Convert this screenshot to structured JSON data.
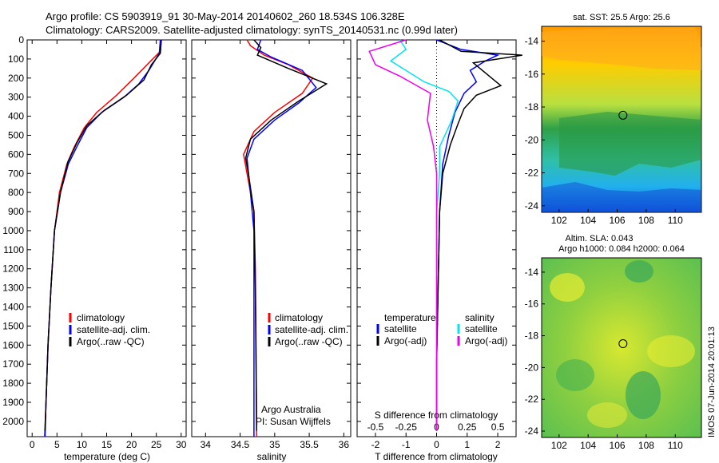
{
  "title": {
    "line1": "Argo profile: CS 5903919_91 30-May-2014 20140602_260 18.534S 106.328E",
    "line2": "Climatology: CARS2009. Satellite-adjusted climatology: synTS_20140531.nc (0.99d later)"
  },
  "credits": {
    "org": "Argo Australia",
    "pi": "PI: Susan Wijffels"
  },
  "stamp": "IMOS 07-Jun-2014 20:01:13",
  "colors": {
    "climatology": "#ff0000",
    "satellite": "#0000ff",
    "argo": "#000000",
    "sat_salinity": "#00e5ee",
    "argo_salinity": "#ee00ee"
  },
  "chart_data": [
    {
      "type": "line",
      "name": "temperature-profile",
      "xlabel": "temperature (deg C)",
      "ylabel": "",
      "xlim": [
        -1,
        31
      ],
      "ylim": [
        2080,
        0
      ],
      "xticks": [
        0,
        5,
        10,
        15,
        20,
        25,
        30
      ],
      "yticks": [
        0,
        100,
        200,
        300,
        400,
        500,
        600,
        700,
        800,
        900,
        1000,
        1100,
        1200,
        1300,
        1400,
        1500,
        1600,
        1700,
        1800,
        1900,
        2000
      ],
      "legend": [
        "climatology",
        "satellite-adj. clim.",
        "Argo(..raw -QC)"
      ],
      "series": [
        {
          "name": "climatology",
          "color": "#ff0000",
          "points": [
            [
              26,
              0
            ],
            [
              25.8,
              60
            ],
            [
              23.5,
              120
            ],
            [
              20.5,
              200
            ],
            [
              17,
              290
            ],
            [
              13,
              380
            ],
            [
              10.5,
              460
            ],
            [
              8.5,
              560
            ],
            [
              7,
              650
            ],
            [
              5.5,
              800
            ],
            [
              4.5,
              1000
            ],
            [
              3.8,
              1300
            ],
            [
              3.2,
              1600
            ],
            [
              2.8,
              1900
            ],
            [
              2.5,
              2080
            ]
          ]
        },
        {
          "name": "satellite",
          "color": "#0000ff",
          "points": [
            [
              25.8,
              0
            ],
            [
              25.6,
              70
            ],
            [
              23.5,
              160
            ],
            [
              21.5,
              230
            ],
            [
              18.5,
              300
            ],
            [
              14,
              380
            ],
            [
              11,
              460
            ],
            [
              9,
              560
            ],
            [
              7.3,
              650
            ],
            [
              5.7,
              800
            ],
            [
              4.5,
              1000
            ],
            [
              3.8,
              1300
            ],
            [
              3.2,
              1600
            ],
            [
              2.8,
              1900
            ],
            [
              2.6,
              2080
            ]
          ]
        },
        {
          "name": "argo",
          "color": "#000000",
          "points": [
            [
              26,
              0
            ],
            [
              25.8,
              70
            ],
            [
              24,
              130
            ],
            [
              22.5,
              210
            ],
            [
              19,
              290
            ],
            [
              14.5,
              370
            ],
            [
              11,
              450
            ],
            [
              9,
              540
            ],
            [
              7.2,
              640
            ],
            [
              5.7,
              800
            ],
            [
              4.5,
              1000
            ],
            [
              3.8,
              1300
            ],
            [
              3.2,
              1600
            ],
            [
              2.8,
              1900
            ],
            [
              2.6,
              2050
            ]
          ]
        }
      ]
    },
    {
      "type": "line",
      "name": "salinity-profile",
      "xlabel": "salinity",
      "xlim": [
        33.8,
        36.1
      ],
      "ylim": [
        2080,
        0
      ],
      "xticks": [
        34,
        34.5,
        35,
        35.5,
        36
      ],
      "legend": [
        "climatology",
        "satellite-adj. clim.",
        "Argo(..raw -QC)"
      ],
      "series": [
        {
          "name": "climatology",
          "color": "#ff0000",
          "points": [
            [
              34.6,
              0
            ],
            [
              34.65,
              30
            ],
            [
              34.85,
              80
            ],
            [
              35.2,
              130
            ],
            [
              35.55,
              200
            ],
            [
              35.4,
              280
            ],
            [
              35,
              380
            ],
            [
              34.7,
              480
            ],
            [
              34.55,
              600
            ],
            [
              34.6,
              700
            ],
            [
              34.7,
              900
            ],
            [
              34.72,
              1200
            ],
            [
              34.73,
              1600
            ],
            [
              34.74,
              2080
            ]
          ]
        },
        {
          "name": "satellite",
          "color": "#0000ff",
          "points": [
            [
              34.8,
              0
            ],
            [
              34.75,
              50
            ],
            [
              34.95,
              90
            ],
            [
              35.4,
              160
            ],
            [
              35.6,
              250
            ],
            [
              35.35,
              330
            ],
            [
              35,
              420
            ],
            [
              34.7,
              520
            ],
            [
              34.6,
              620
            ],
            [
              34.65,
              800
            ],
            [
              34.7,
              1000
            ],
            [
              34.7,
              1400
            ],
            [
              34.7,
              1800
            ],
            [
              34.7,
              2080
            ]
          ]
        },
        {
          "name": "argo",
          "color": "#000000",
          "points": [
            [
              34.7,
              0
            ],
            [
              34.8,
              40
            ],
            [
              34.75,
              80
            ],
            [
              35.2,
              150
            ],
            [
              35.75,
              230
            ],
            [
              35.35,
              320
            ],
            [
              34.95,
              420
            ],
            [
              34.65,
              520
            ],
            [
              34.58,
              620
            ],
            [
              34.62,
              700
            ],
            [
              34.7,
              900
            ],
            [
              34.72,
              1300
            ],
            [
              34.73,
              1700
            ],
            [
              34.74,
              2050
            ]
          ]
        }
      ]
    },
    {
      "type": "line",
      "name": "difference-profile",
      "xlabel": "T difference from climatology",
      "xlabel_top": "S difference from climatology",
      "xlim": [
        -2.6,
        2.6
      ],
      "ylim": [
        2080,
        0
      ],
      "xticks": [
        -2,
        -1,
        0,
        1,
        2
      ],
      "xticklabels_top": [
        "-0.5",
        "-0.25",
        "0",
        "0.25",
        "0.5"
      ],
      "legend_headers": [
        "temperature",
        "salinity"
      ],
      "legend": [
        "satellite",
        "Argo(-adj)",
        "satellite",
        "Argo(-adj)"
      ],
      "series": [
        {
          "name": "T satellite",
          "color": "#0000ff",
          "points": [
            [
              0,
              0
            ],
            [
              0.8,
              50
            ],
            [
              2,
              80
            ],
            [
              1.6,
              110
            ],
            [
              1.1,
              160
            ],
            [
              1.3,
              220
            ],
            [
              0.9,
              280
            ],
            [
              0.6,
              380
            ],
            [
              0.4,
              500
            ],
            [
              0.2,
              650
            ],
            [
              0.1,
              900
            ],
            [
              0.05,
              1300
            ],
            [
              0,
              1700
            ],
            [
              0,
              2050
            ]
          ]
        },
        {
          "name": "T argo",
          "color": "#000000",
          "points": [
            [
              0.1,
              0
            ],
            [
              0.8,
              60
            ],
            [
              2.8,
              80
            ],
            [
              1.2,
              120
            ],
            [
              1.8,
              200
            ],
            [
              2.1,
              240
            ],
            [
              1.3,
              290
            ],
            [
              0.9,
              360
            ],
            [
              0.7,
              440
            ],
            [
              0.45,
              550
            ],
            [
              0.2,
              700
            ],
            [
              0.1,
              900
            ],
            [
              0.05,
              1300
            ],
            [
              0,
              1700
            ],
            [
              0,
              2050
            ]
          ]
        },
        {
          "name": "S satellite",
          "color": "#00e5ee",
          "points": [
            [
              -1.2,
              0
            ],
            [
              -1,
              50
            ],
            [
              -1.5,
              110
            ],
            [
              -0.4,
              220
            ],
            [
              0.4,
              270
            ],
            [
              0.7,
              320
            ],
            [
              0.5,
              420
            ],
            [
              0.1,
              560
            ],
            [
              0.1,
              700
            ],
            [
              0,
              900
            ],
            [
              0,
              1300
            ],
            [
              0,
              1700
            ],
            [
              0,
              2050
            ]
          ]
        },
        {
          "name": "S argo",
          "color": "#ee00ee",
          "points": [
            [
              -1,
              0
            ],
            [
              -2.2,
              60
            ],
            [
              -2,
              130
            ],
            [
              -1.2,
              190
            ],
            [
              -0.2,
              280
            ],
            [
              -0.3,
              420
            ],
            [
              -0.1,
              560
            ],
            [
              0,
              700
            ],
            [
              0,
              900
            ],
            [
              0,
              1300
            ],
            [
              0,
              1700
            ],
            [
              0,
              2050
            ]
          ]
        }
      ]
    },
    {
      "type": "heatmap",
      "name": "sst-map",
      "title": "sat. SST: 25.5 Argo: 25.6",
      "xlim": [
        100.8,
        111.8
      ],
      "ylim": [
        -24.4,
        -13.1
      ],
      "xticks": [
        102,
        104,
        106,
        108,
        110
      ],
      "yticks": [
        -14,
        -16,
        -18,
        -20,
        -22,
        -24
      ],
      "marker": [
        106.4,
        -18.5
      ]
    },
    {
      "type": "heatmap",
      "name": "sla-map",
      "title1": "Altim. SLA: 0.043",
      "title2": "Argo h1000: 0.084 h2000: 0.064",
      "xlim": [
        100.8,
        111.8
      ],
      "ylim": [
        -24.4,
        -13.1
      ],
      "xticks": [
        102,
        104,
        106,
        108,
        110
      ],
      "yticks": [
        -14,
        -16,
        -18,
        -20,
        -22,
        -24
      ],
      "marker": [
        106.4,
        -18.5
      ]
    }
  ]
}
